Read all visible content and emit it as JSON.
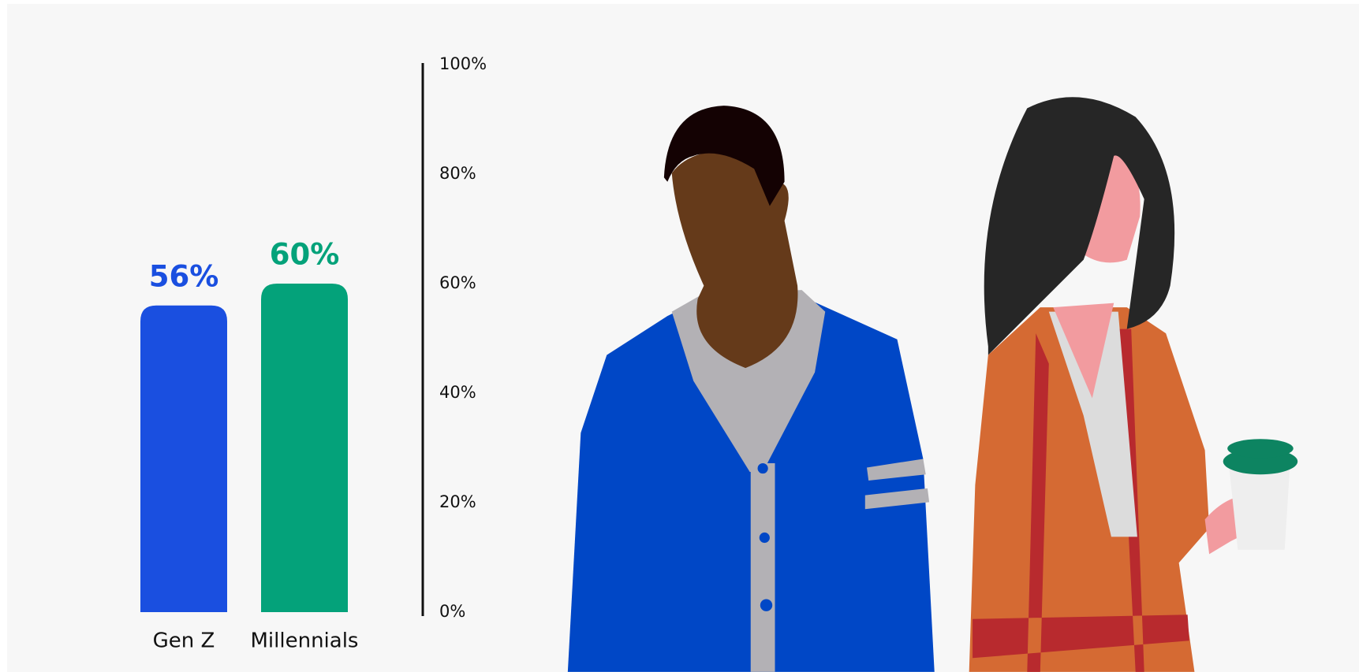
{
  "chart_data": {
    "type": "bar",
    "categories": [
      "Gen Z",
      "Millennials"
    ],
    "values": [
      56,
      60
    ],
    "value_labels": [
      "56%",
      "60%"
    ],
    "colors": [
      "#1a4fe0",
      "#04a27a"
    ],
    "ylim": [
      0,
      100
    ],
    "yticks": [
      {
        "value": 0,
        "label": "0%"
      },
      {
        "value": 20,
        "label": "20%"
      },
      {
        "value": 40,
        "label": "40%"
      },
      {
        "value": 60,
        "label": "60%"
      },
      {
        "value": 80,
        "label": "80%"
      },
      {
        "value": 100,
        "label": "100%"
      }
    ]
  }
}
